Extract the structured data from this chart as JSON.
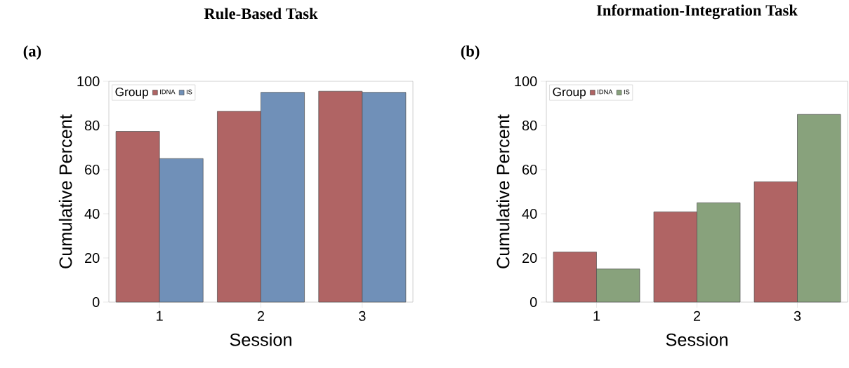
{
  "chart_data": [
    {
      "type": "bar",
      "title": "Rule-Based Task",
      "annotations": [
        "(a)"
      ],
      "xlabel": "Session",
      "ylabel": "Cumulative Percent",
      "categories": [
        "1",
        "2",
        "3"
      ],
      "series": [
        {
          "name": "IDNA",
          "color": "#b06464",
          "values": [
            77.3,
            86.4,
            95.5
          ]
        },
        {
          "name": "IS",
          "color": "#7090b8",
          "values": [
            65,
            95,
            95
          ]
        }
      ],
      "ylim": [
        0,
        100
      ],
      "yticks": [
        0,
        20,
        40,
        60,
        80,
        100
      ],
      "legend": "top left",
      "legend_title": "Group",
      "grid": false
    },
    {
      "type": "bar",
      "title": "Information-Integration Task",
      "annotations": [
        "(b)"
      ],
      "xlabel": "Session",
      "ylabel": "Cumulative Percent",
      "categories": [
        "1",
        "2",
        "3"
      ],
      "series": [
        {
          "name": "IDNA",
          "color": "#b06464",
          "values": [
            22.7,
            40.9,
            54.5
          ]
        },
        {
          "name": "IS",
          "color": "#88a27c",
          "values": [
            15,
            45,
            85
          ]
        }
      ],
      "ylim": [
        0,
        100
      ],
      "yticks": [
        0,
        20,
        40,
        60,
        80,
        100
      ],
      "legend": "top left",
      "legend_title": "Group",
      "grid": false
    }
  ]
}
